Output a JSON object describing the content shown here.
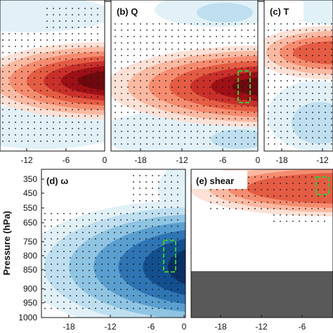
{
  "colors": {
    "warm": [
      "#fde0d6",
      "#fbb9a2",
      "#f58c70",
      "#e45c43",
      "#c9302a",
      "#9e1016",
      "#6e0a0e"
    ],
    "cold": [
      "#e2f1f8",
      "#bfdff0",
      "#8fc4e2",
      "#5a9fcf",
      "#2f74b3",
      "#134f8e",
      "#0a3064"
    ],
    "land_mask": "#595959",
    "box": "#39c539",
    "stipple": "#111111"
  },
  "chart_data": [
    {
      "panel": "a",
      "label": "",
      "type": "heatmap",
      "x_ticks": [
        "-12",
        "-6",
        "0"
      ],
      "y_ticks": [],
      "field": "warm-band",
      "peak": 6,
      "has_box": false
    },
    {
      "panel": "b",
      "label": "(b) Q",
      "type": "heatmap",
      "x_ticks": [
        "-18",
        "-12",
        "-6",
        "0"
      ],
      "y_ticks": [],
      "field": "warm-band",
      "peak": 6,
      "has_box": true
    },
    {
      "panel": "c",
      "label": "(c) T",
      "type": "heatmap",
      "x_ticks": [
        "-18",
        "-12"
      ],
      "y_ticks": [],
      "field": "weak-warm",
      "peak": 3,
      "has_box": false
    },
    {
      "panel": "d",
      "label": "(d) ω",
      "type": "heatmap",
      "x_ticks": [
        "-18",
        "-12",
        "-6",
        "0"
      ],
      "y_ticks": [
        "350",
        "450",
        "550",
        "650",
        "750",
        "800",
        "850",
        "900",
        "950",
        "1000"
      ],
      "ylabel": "Pressure (hPa)",
      "field": "cold-plume",
      "peak": 6,
      "has_box": true
    },
    {
      "panel": "e",
      "label": "(e) shear",
      "type": "heatmap",
      "x_ticks": [
        "-18",
        "-12",
        "-6"
      ],
      "y_ticks": [],
      "field": "upper-warm",
      "peak": 3,
      "has_box": true
    }
  ]
}
